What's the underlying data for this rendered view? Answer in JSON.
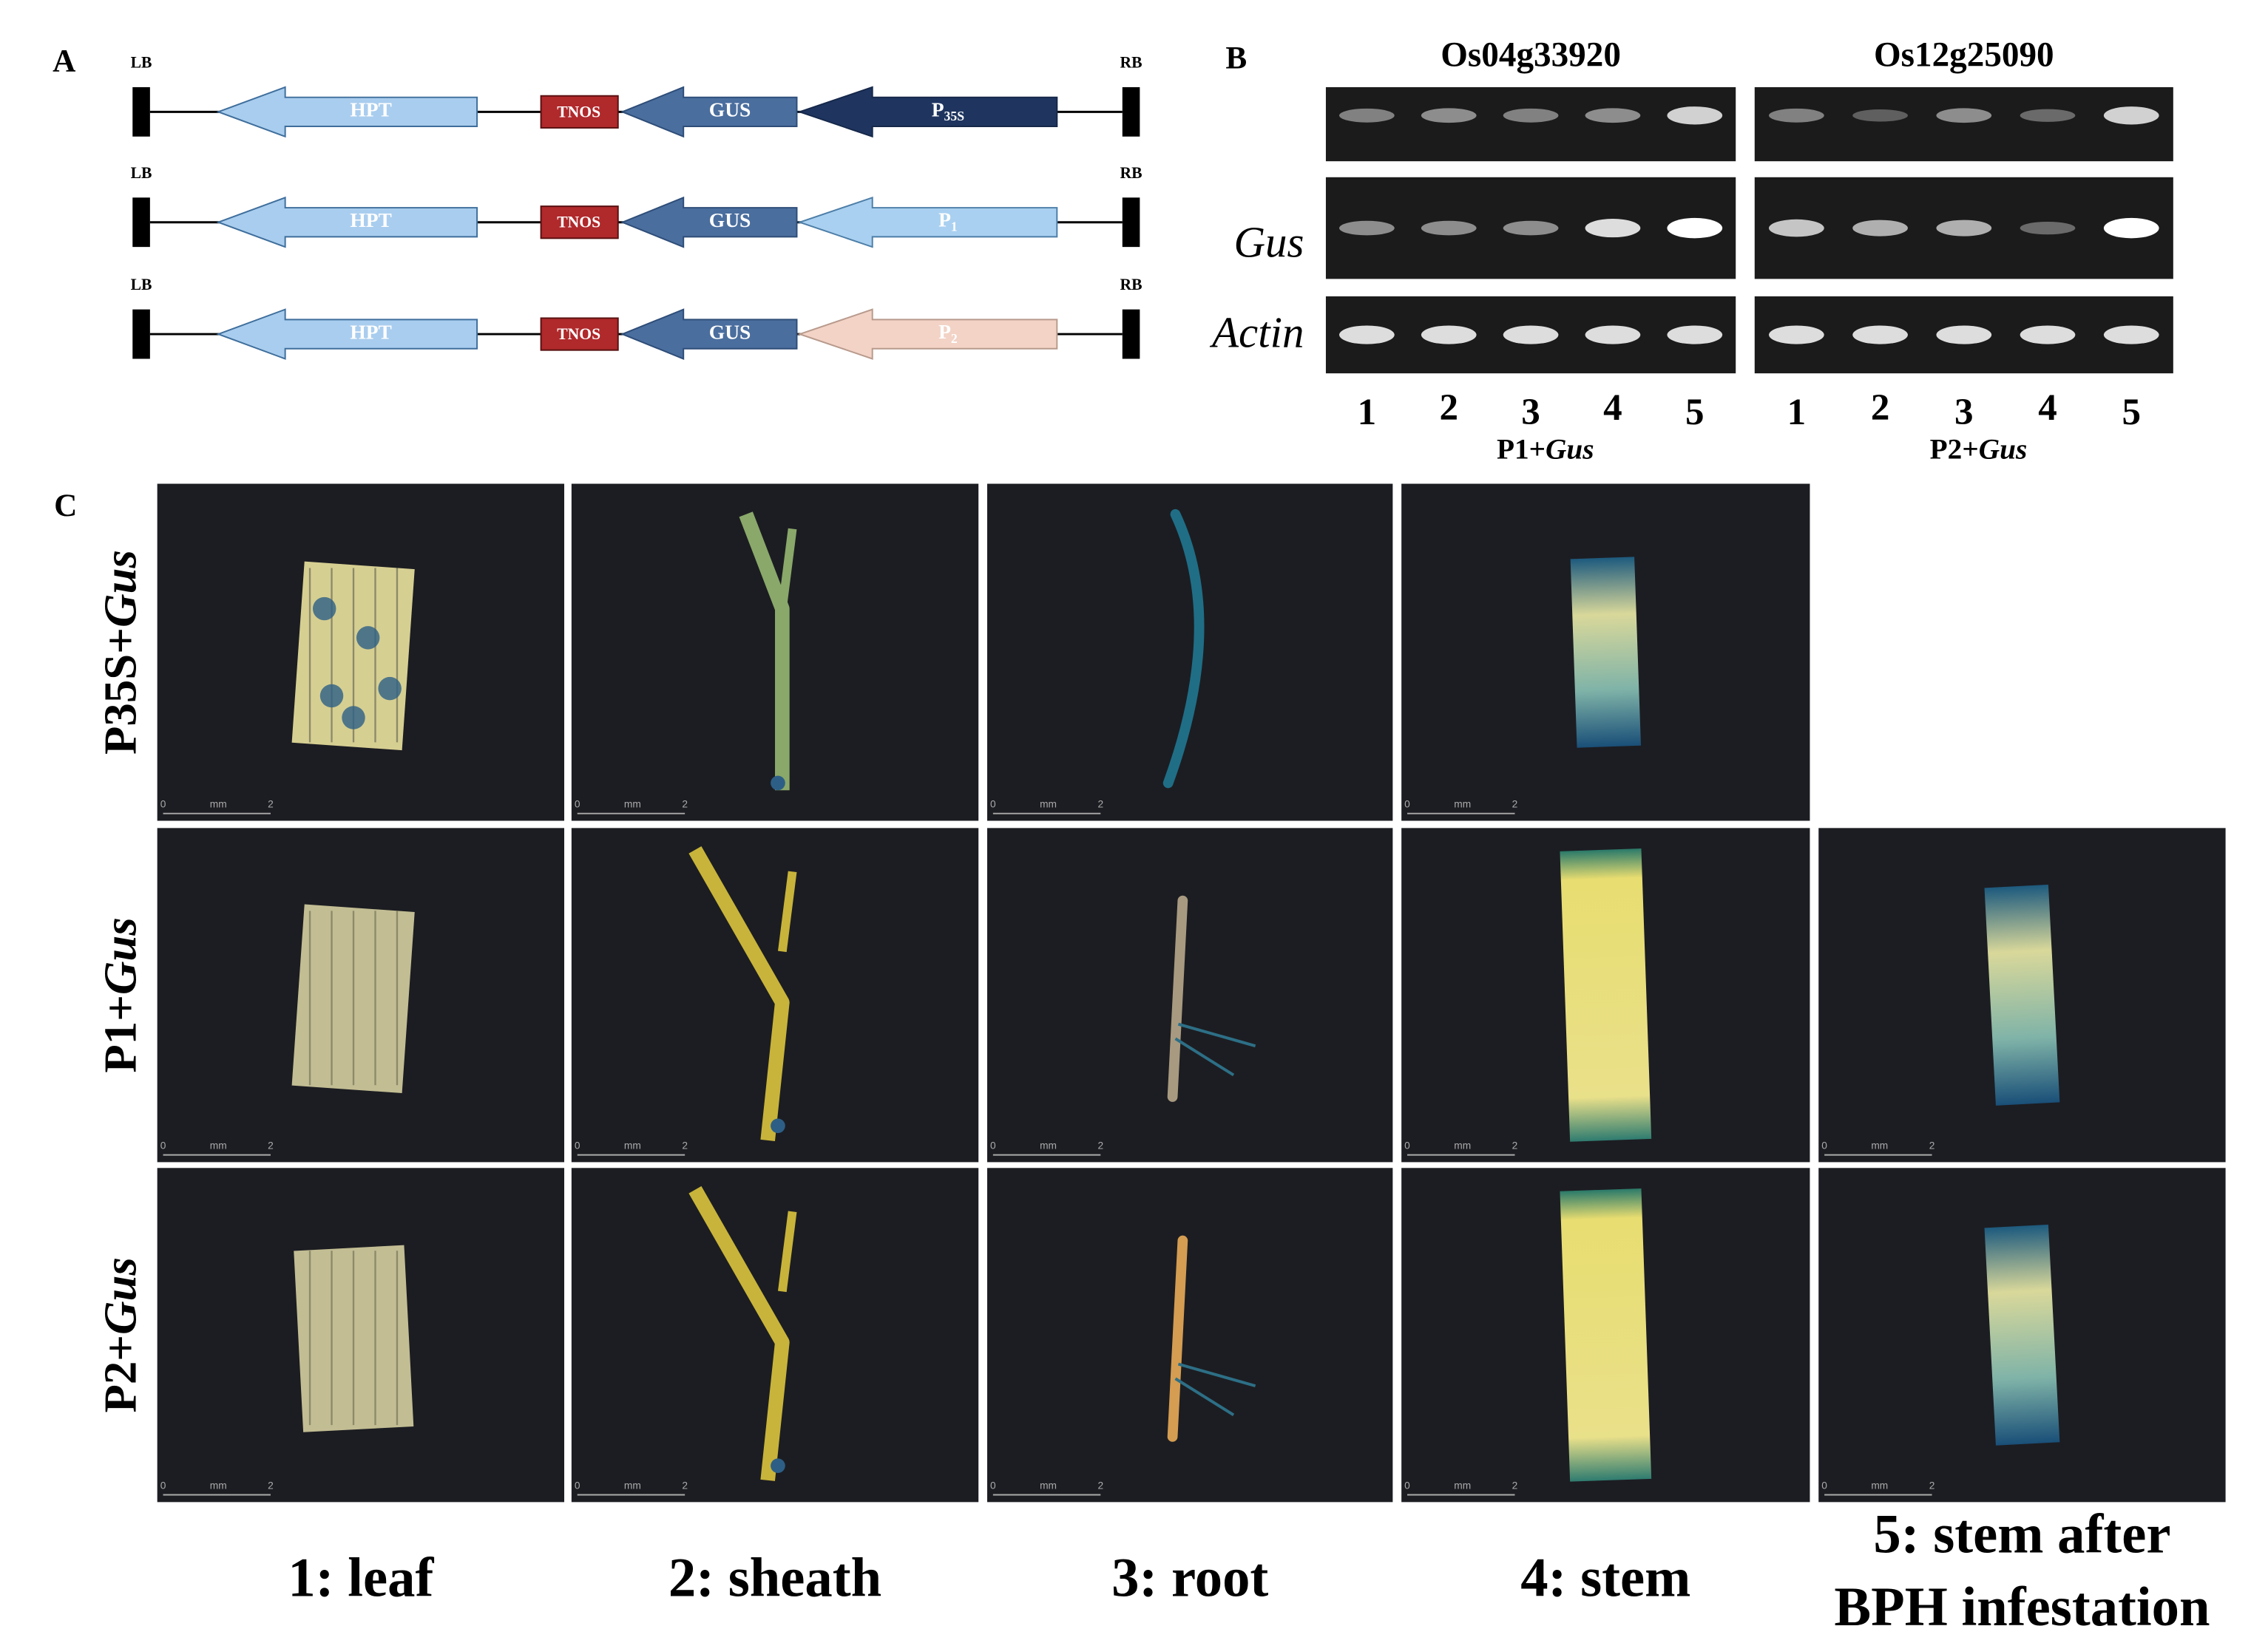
{
  "panel_a": {
    "label": "A",
    "left_border": "LB",
    "right_border": "RB",
    "constructs": [
      {
        "hpt": "HPT",
        "terminator": "TNOS",
        "reporter": "GUS",
        "promoter": {
          "main": "P",
          "sub": "35S"
        }
      },
      {
        "hpt": "HPT",
        "terminator": "TNOS",
        "reporter": "GUS",
        "promoter": {
          "main": "P",
          "sub": "1"
        }
      },
      {
        "hpt": "HPT",
        "terminator": "TNOS",
        "reporter": "GUS",
        "promoter": {
          "main": "P",
          "sub": "2"
        }
      }
    ]
  },
  "panel_b": {
    "label": "B",
    "genes": [
      "Os04g33920",
      "Os12g25090"
    ],
    "row_labels": [
      "Gus",
      "Actin"
    ],
    "lanes": [
      [
        "1",
        "2",
        "3",
        "4",
        "5"
      ],
      [
        "1",
        "2",
        "3",
        "4",
        "5"
      ]
    ],
    "groups": [
      {
        "prefix": "P1+",
        "italic": "Gus"
      },
      {
        "prefix": "P2+",
        "italic": "Gus"
      }
    ]
  },
  "panel_c": {
    "label": "C",
    "rows": [
      {
        "prefix": "P35S+",
        "italic": "Gus"
      },
      {
        "prefix": "P1+",
        "italic": "Gus"
      },
      {
        "prefix": "P2+",
        "italic": "Gus"
      }
    ],
    "columns": [
      [
        "1: leaf"
      ],
      [
        "2: sheath"
      ],
      [
        "3: root"
      ],
      [
        "4: stem"
      ],
      [
        "5: stem after",
        "BPH infestation"
      ]
    ],
    "scale_bar": {
      "start": "0",
      "unit": "mm",
      "end": "2"
    }
  }
}
